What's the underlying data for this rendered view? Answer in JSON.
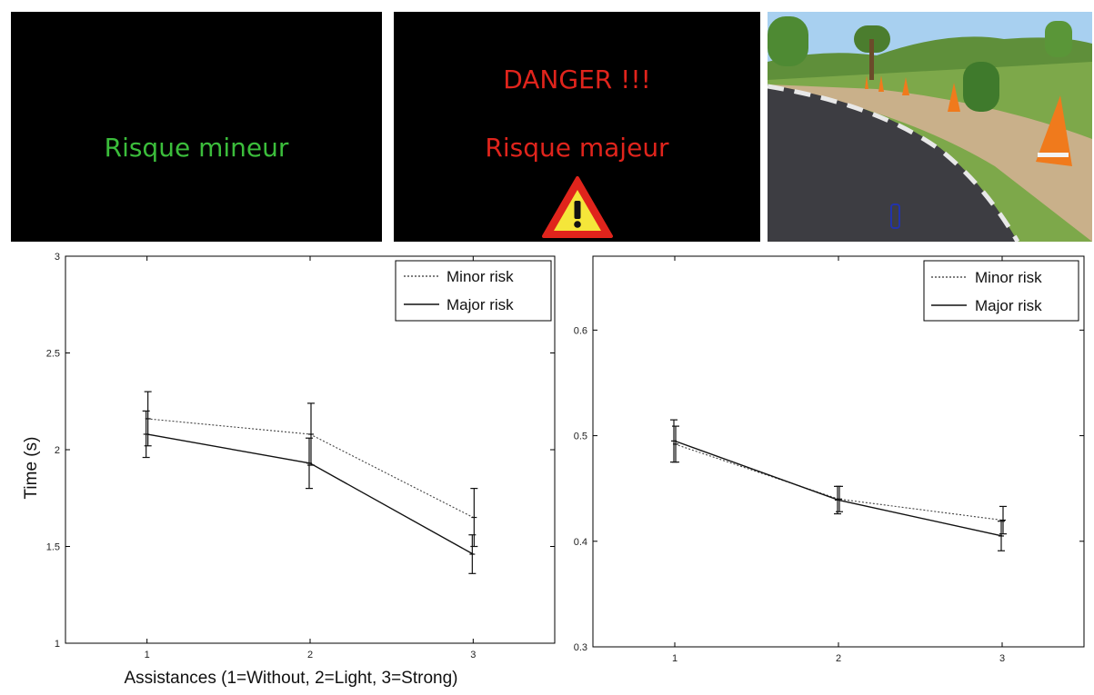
{
  "panels": {
    "minor": {
      "text": "Risque mineur",
      "color": "#3bbd3b"
    },
    "major": {
      "danger_text": "DANGER !!!",
      "text": "Risque majeur",
      "color": "#e0241c",
      "icon": "warning-triangle-icon"
    },
    "simulator": {
      "icon": "driving-simulator-scene"
    }
  },
  "chart_data": [
    {
      "type": "line",
      "title": "",
      "xlabel": "Assistances (1=Without, 2=Light, 3=Strong)",
      "ylabel": "Time (s)",
      "x": [
        1,
        2,
        3
      ],
      "xticks": [
        "1",
        "2",
        "3"
      ],
      "xlim": [
        0.5,
        3.5
      ],
      "ylim": [
        1,
        3
      ],
      "yticks": [
        "1",
        "1.5",
        "2",
        "2.5",
        "3"
      ],
      "legend_position": "top-right",
      "grid": false,
      "series": [
        {
          "name": "Minor risk",
          "style": "dotted",
          "values": [
            2.16,
            2.08,
            1.65
          ],
          "errors": [
            0.14,
            0.16,
            0.15
          ]
        },
        {
          "name": "Major risk",
          "style": "solid",
          "values": [
            2.08,
            1.93,
            1.46
          ],
          "errors": [
            0.12,
            0.13,
            0.1
          ]
        }
      ]
    },
    {
      "type": "line",
      "title": "",
      "xlabel": "",
      "ylabel": "",
      "x": [
        1,
        2,
        3
      ],
      "xticks": [
        "1",
        "2",
        "3"
      ],
      "xlim": [
        0.5,
        3.5
      ],
      "ylim": [
        0.3,
        0.67
      ],
      "yticks": [
        "0.3",
        "0.4",
        "0.5",
        "0.6"
      ],
      "legend_position": "top-right",
      "grid": false,
      "series": [
        {
          "name": "Minor risk",
          "style": "dotted",
          "values": [
            0.492,
            0.44,
            0.42
          ],
          "errors": [
            0.017,
            0.012,
            0.013
          ]
        },
        {
          "name": "Major risk",
          "style": "solid",
          "values": [
            0.495,
            0.439,
            0.405
          ],
          "errors": [
            0.02,
            0.013,
            0.014
          ]
        }
      ]
    }
  ]
}
